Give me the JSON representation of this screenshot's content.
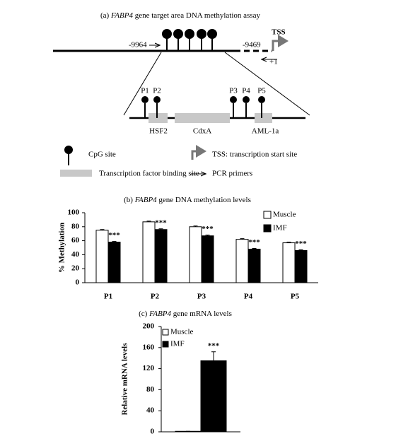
{
  "diagram": {
    "title": {
      "prefix": "(a)",
      "gene": "FABP4",
      "rest": "gene target area DNA methylation assay"
    },
    "primer_left": "-9964",
    "primer_right": "-9469",
    "tss": "TSS",
    "plus_one": "+1",
    "cpg_labels": [
      "P1",
      "P2",
      "P3",
      "P4",
      "P5"
    ],
    "binding_sites": [
      "HSF2",
      "CdxA",
      "AML-1a"
    ],
    "legend": {
      "cpg": "CpG site",
      "tss": "TSS: transcription start site",
      "binding": "Transcription factor binding site",
      "primers": "PCR primers"
    }
  },
  "chart_data": [
    {
      "type": "bar",
      "title": {
        "prefix": "(b)",
        "gene": "FABP4",
        "rest": "gene DNA methylation levels"
      },
      "y_label": "% Methylation",
      "categories": [
        "P1",
        "P2",
        "P3",
        "P4",
        "P5"
      ],
      "series": [
        {
          "name": "Muscle",
          "color": "#ffffff",
          "values": [
            75,
            87,
            80,
            62,
            57
          ],
          "errors": [
            1,
            1,
            1,
            1,
            1
          ]
        },
        {
          "name": "IMF",
          "color": "#000000",
          "values": [
            58,
            76,
            67,
            48,
            46
          ],
          "errors": [
            1,
            1,
            1,
            1,
            1
          ]
        }
      ],
      "significance": [
        "***",
        "***",
        "***",
        "***",
        "***"
      ],
      "ylim": [
        0,
        100
      ],
      "yticks": [
        0,
        20,
        40,
        60,
        80,
        100
      ],
      "legend": "top-right"
    },
    {
      "type": "bar",
      "title": {
        "prefix": "(c)",
        "gene": "FABP4",
        "rest": "gene mRNA levels"
      },
      "y_label": "Relative mRNA levels",
      "categories": [
        null
      ],
      "series": [
        {
          "name": "Muscle",
          "color": "#ffffff",
          "values": [
            1
          ],
          "errors": [
            0
          ]
        },
        {
          "name": "IMF",
          "color": "#000000",
          "values": [
            135
          ],
          "errors": [
            17
          ]
        }
      ],
      "significance": [
        "***"
      ],
      "ylim": [
        0,
        200
      ],
      "yticks": [
        0,
        40,
        80,
        120,
        160,
        200
      ],
      "legend": "top-left"
    }
  ]
}
